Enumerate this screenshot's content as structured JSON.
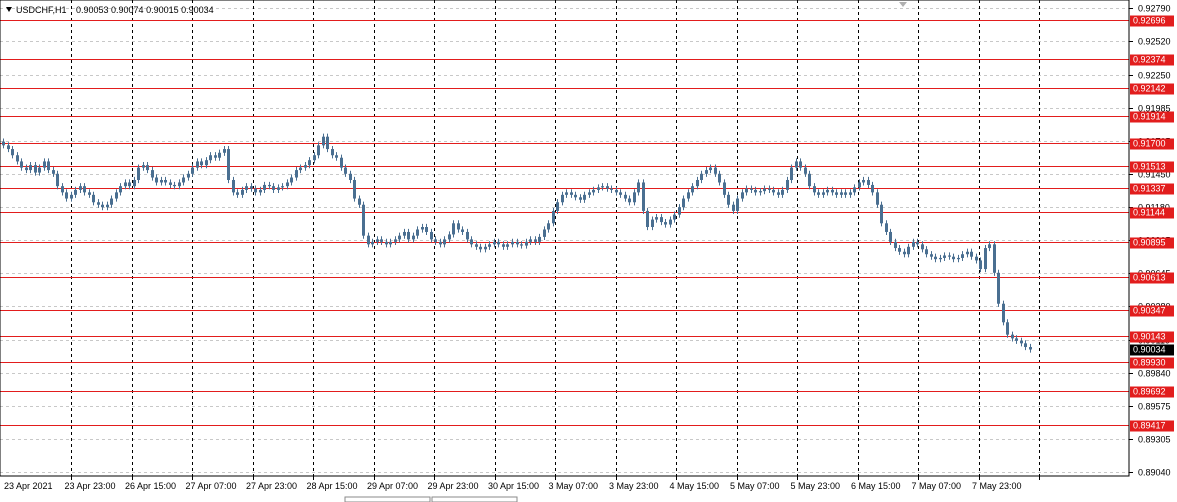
{
  "header": {
    "symbol": "USDCHF,H1",
    "ohlc": "0.90053 0.90074 0.90015 0.90034"
  },
  "colors": {
    "candle": "#4a6f91",
    "level": "#e21d1d",
    "level_label_bg": "#e21d1d",
    "price_label_bg": "#000000",
    "grid": "#c8c8c8",
    "vgrid": "#000000"
  },
  "chart_data": {
    "type": "line",
    "title": "",
    "xlabel": "",
    "ylabel": "",
    "ylim": [
      0.8904,
      0.9279
    ],
    "price_ticks": [
      "0.92790",
      "0.92520",
      "0.92250",
      "0.91985",
      "0.91715",
      "0.91450",
      "0.91180",
      "0.90915",
      "0.90645",
      "0.90380",
      "0.90110",
      "0.89840",
      "0.89575",
      "0.89305",
      "0.89040"
    ],
    "levels": [
      "0.92696",
      "0.92374",
      "0.92142",
      "0.91914",
      "0.91700",
      "0.91513",
      "0.91337",
      "0.91144",
      "0.90895",
      "0.90613",
      "0.90347",
      "0.90143",
      "0.89930",
      "0.89692",
      "0.89417"
    ],
    "current_price": "0.90034",
    "time_labels": [
      "23 Apr 2021",
      "23 Apr 23:00",
      "26 Apr 15:00",
      "27 Apr 07:00",
      "27 Apr 23:00",
      "28 Apr 15:00",
      "29 Apr 07:00",
      "29 Apr 23:00",
      "30 Apr 15:00",
      "3 May 07:00",
      "3 May 23:00",
      "4 May 15:00",
      "5 May 07:00",
      "5 May 23:00",
      "6 May 15:00",
      "7 May 07:00",
      "7 May 23:00"
    ],
    "vgrid_after_labels": true,
    "grid": true,
    "series": [
      {
        "values": [
          0.9168,
          0.9165,
          0.916,
          0.9155,
          0.915,
          0.9148,
          0.9152,
          0.9146,
          0.915,
          0.9155,
          0.9148,
          0.9145,
          0.9135,
          0.913,
          0.9125,
          0.9128,
          0.9132,
          0.9135,
          0.913,
          0.9128,
          0.9122,
          0.912,
          0.9118,
          0.912,
          0.9125,
          0.913,
          0.9135,
          0.9138,
          0.9135,
          0.914,
          0.915,
          0.9152,
          0.9148,
          0.9142,
          0.9138,
          0.914,
          0.9138,
          0.9136,
          0.9135,
          0.9138,
          0.9142,
          0.9145,
          0.915,
          0.9155,
          0.9152,
          0.9156,
          0.916,
          0.9158,
          0.9162,
          0.9165,
          0.914,
          0.913,
          0.9128,
          0.9132,
          0.9135,
          0.9133,
          0.913,
          0.9132,
          0.9136,
          0.9135,
          0.9132,
          0.9134,
          0.9135,
          0.9138,
          0.9142,
          0.9148,
          0.915,
          0.9152,
          0.9156,
          0.916,
          0.9168,
          0.9175,
          0.9165,
          0.916,
          0.9158,
          0.915,
          0.9145,
          0.914,
          0.9125,
          0.912,
          0.9095,
          0.9088,
          0.909,
          0.9092,
          0.909,
          0.9088,
          0.909,
          0.9092,
          0.9095,
          0.9098,
          0.9092,
          0.9095,
          0.91,
          0.9102,
          0.9098,
          0.9092,
          0.909,
          0.9088,
          0.9092,
          0.9096,
          0.9105,
          0.91,
          0.9098,
          0.9092,
          0.9088,
          0.9086,
          0.9084,
          0.9086,
          0.9088,
          0.909,
          0.9088,
          0.9086,
          0.9088,
          0.909,
          0.9088,
          0.9087,
          0.909,
          0.9092,
          0.909,
          0.9094,
          0.91,
          0.9105,
          0.9115,
          0.9122,
          0.9128,
          0.913,
          0.9128,
          0.9126,
          0.9124,
          0.9128,
          0.913,
          0.9132,
          0.9134,
          0.9135,
          0.9133,
          0.9132,
          0.913,
          0.9128,
          0.9125,
          0.9122,
          0.913,
          0.9138,
          0.9115,
          0.9102,
          0.9108,
          0.911,
          0.9106,
          0.9104,
          0.9108,
          0.9112,
          0.9118,
          0.9125,
          0.913,
          0.9135,
          0.914,
          0.9145,
          0.9148,
          0.915,
          0.9145,
          0.9138,
          0.9128,
          0.912,
          0.9115,
          0.9125,
          0.913,
          0.9133,
          0.9132,
          0.913,
          0.9131,
          0.9133,
          0.9132,
          0.913,
          0.9128,
          0.9132,
          0.914,
          0.915,
          0.9155,
          0.915,
          0.9145,
          0.9135,
          0.913,
          0.9128,
          0.913,
          0.9132,
          0.913,
          0.9128,
          0.913,
          0.9128,
          0.913,
          0.9134,
          0.9138,
          0.914,
          0.9136,
          0.913,
          0.912,
          0.9105,
          0.9098,
          0.909,
          0.9085,
          0.9082,
          0.908,
          0.9086,
          0.909,
          0.9088,
          0.9084,
          0.908,
          0.9078,
          0.9076,
          0.9077,
          0.9079,
          0.9078,
          0.9076,
          0.9077,
          0.908,
          0.9082,
          0.9078,
          0.9075,
          0.9068,
          0.9085,
          0.9088,
          0.9065,
          0.904,
          0.9025,
          0.9015,
          0.9012,
          0.901,
          0.9008,
          0.9005,
          0.9003
        ]
      }
    ]
  }
}
